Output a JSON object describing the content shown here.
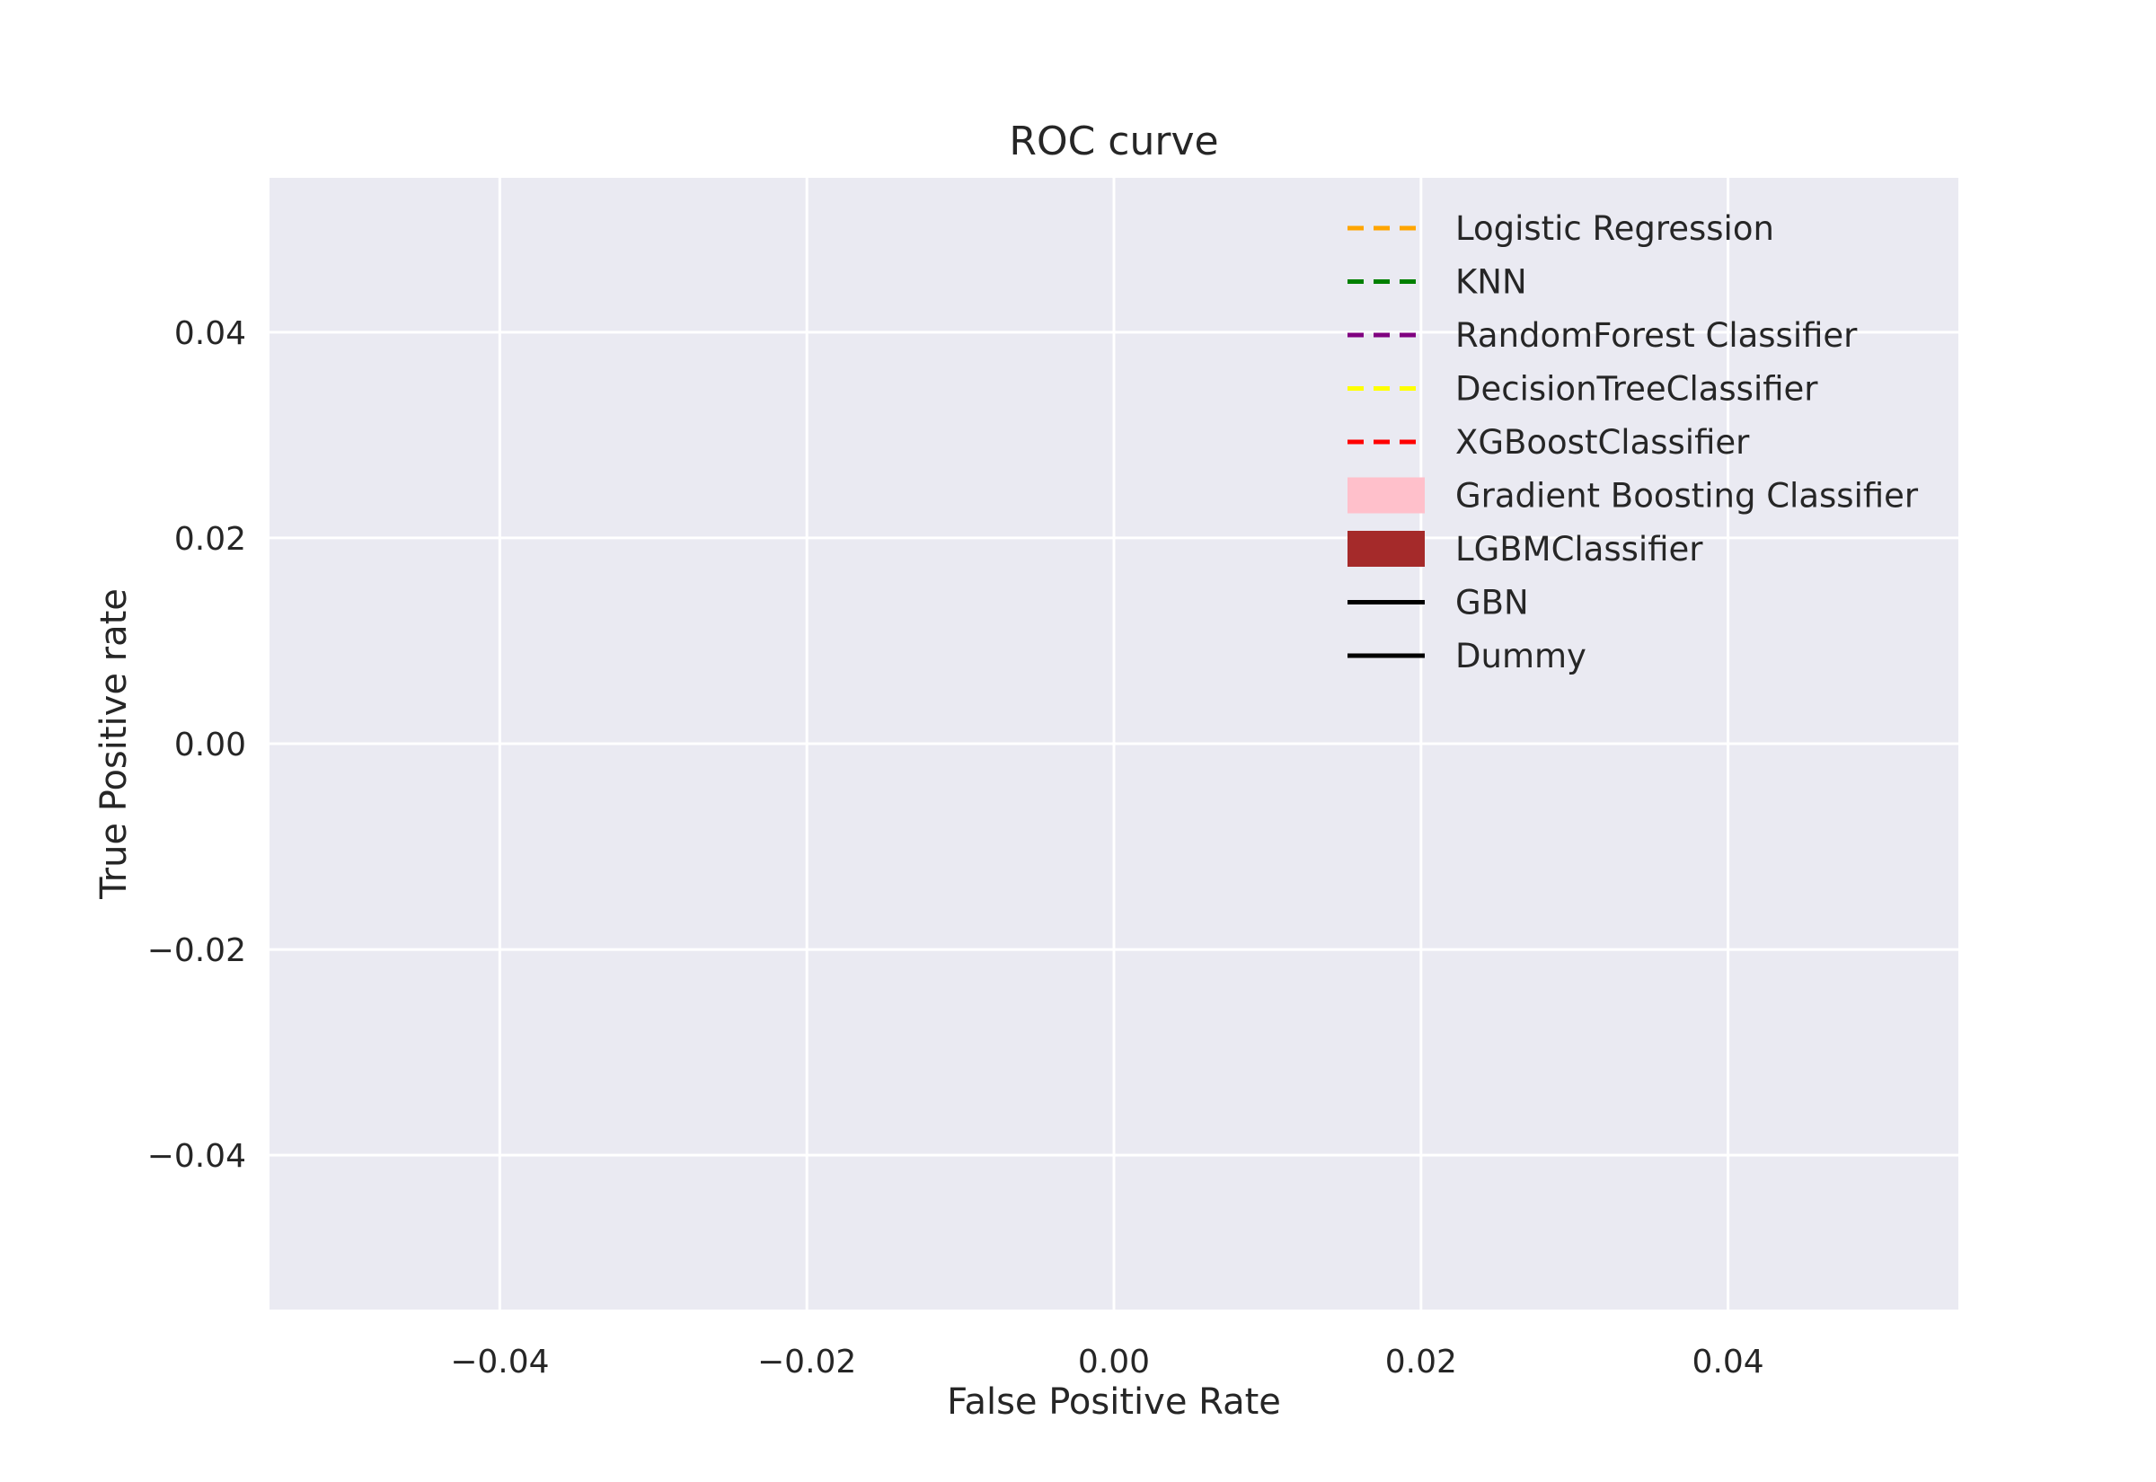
{
  "chart_data": {
    "type": "line",
    "title": "ROC curve",
    "xlabel": "False Positive Rate",
    "ylabel": "True Positive rate",
    "xlim": [
      -0.055,
      0.055
    ],
    "ylim": [
      -0.055,
      0.055
    ],
    "xticks": [
      -0.04,
      -0.02,
      0.0,
      0.02,
      0.04
    ],
    "yticks": [
      -0.04,
      -0.02,
      0.0,
      0.02,
      0.04
    ],
    "xtick_labels": [
      "−0.04",
      "−0.02",
      "0.00",
      "0.02",
      "0.04"
    ],
    "ytick_labels": [
      "−0.04",
      "−0.02",
      "0.00",
      "0.02",
      "0.04"
    ],
    "grid": true,
    "background": "#EAEAF2",
    "legend_position": "upper right",
    "series": [
      {
        "name": "Logistic Regression",
        "color": "#FFA500",
        "style": "dashed",
        "x": [],
        "y": []
      },
      {
        "name": "KNN",
        "color": "#008000",
        "style": "dashed",
        "x": [],
        "y": []
      },
      {
        "name": "RandomForest Classifier",
        "color": "#800080",
        "style": "dashed",
        "x": [],
        "y": []
      },
      {
        "name": "DecisionTreeClassifier",
        "color": "#FFFF00",
        "style": "dashed",
        "x": [],
        "y": []
      },
      {
        "name": "XGBoostClassifier",
        "color": "#FF0000",
        "style": "dashed",
        "x": [],
        "y": []
      },
      {
        "name": "Gradient Boosting Classifier",
        "color": "#FFC0CB",
        "style": "patch",
        "x": [],
        "y": []
      },
      {
        "name": "LGBMClassifier",
        "color": "#A52A2A",
        "style": "patch",
        "x": [],
        "y": []
      },
      {
        "name": "GBN",
        "color": "#000000",
        "style": "solid",
        "x": [],
        "y": []
      },
      {
        "name": "Dummy",
        "color": "#000000",
        "style": "solid",
        "x": [],
        "y": []
      }
    ]
  }
}
